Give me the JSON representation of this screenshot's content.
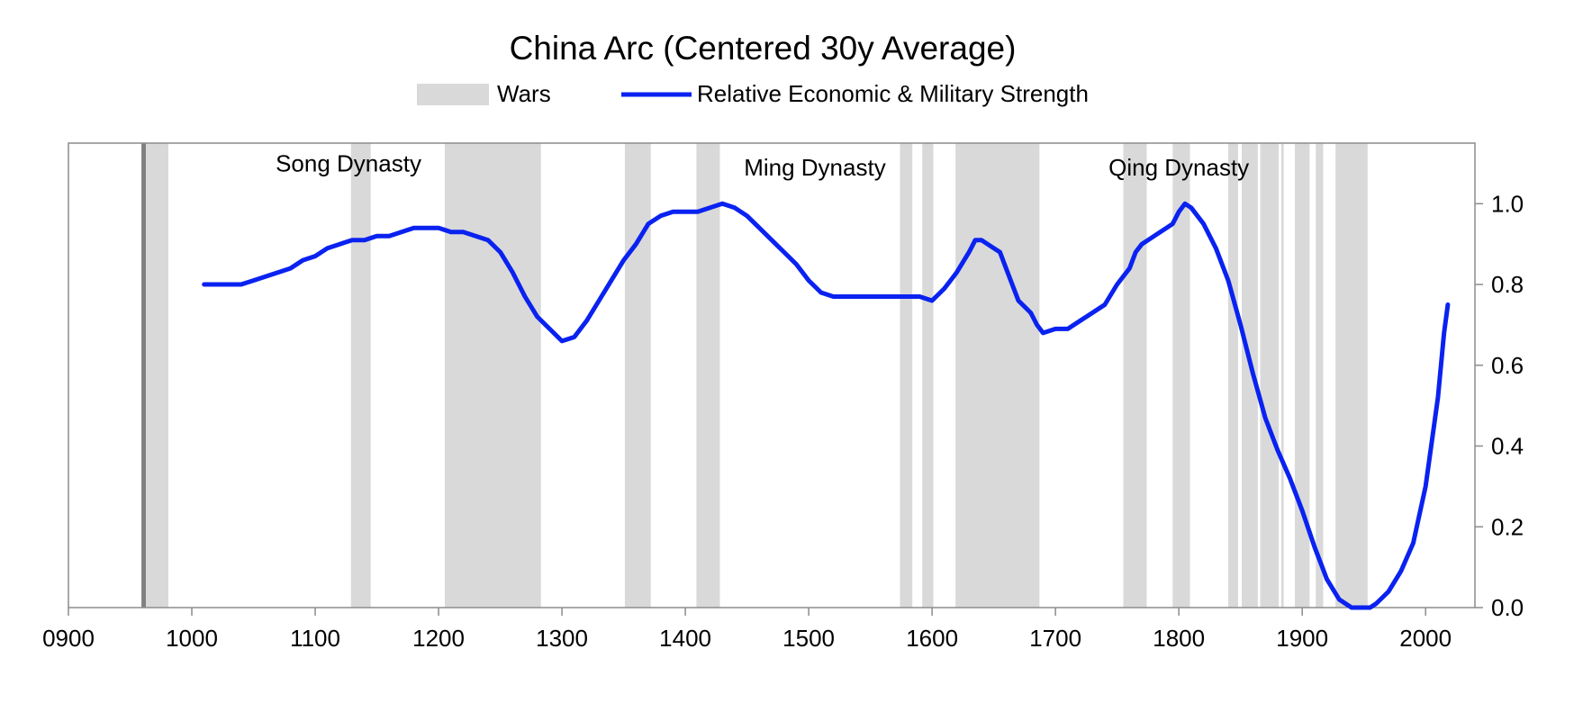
{
  "chart_data": {
    "type": "line",
    "title": "China Arc (Centered 30y Average)",
    "xlabel": "",
    "ylabel": "",
    "xlim": [
      900,
      2040
    ],
    "ylim": [
      0.0,
      1.15
    ],
    "x_ticks": [
      "0900",
      "1000",
      "1100",
      "1200",
      "1300",
      "1400",
      "1500",
      "1600",
      "1700",
      "1800",
      "1900",
      "2000"
    ],
    "y_ticks": [
      "0.0",
      "0.2",
      "0.4",
      "0.6",
      "0.8",
      "1.0"
    ],
    "y_axis_side": "right",
    "grid": false,
    "legend": {
      "placement": "top-center",
      "entries": [
        {
          "label": "Wars",
          "type": "band",
          "color": "#d9d9d9"
        },
        {
          "label": "Relative Economic & Military Strength",
          "type": "line",
          "color": "#0a22f0"
        }
      ]
    },
    "annotations": [
      {
        "text": "Song Dynasty",
        "x": 1127,
        "y": 1.08
      },
      {
        "text": "Ming Dynasty",
        "x": 1505,
        "y": 1.07
      },
      {
        "text": "Qing Dynasty",
        "x": 1800,
        "y": 1.07
      }
    ],
    "marker_line": {
      "year": 961,
      "color": "#808080"
    },
    "wars": [
      [
        963,
        981
      ],
      [
        1129,
        1145
      ],
      [
        1205,
        1283
      ],
      [
        1351,
        1372
      ],
      [
        1409,
        1428
      ],
      [
        1574,
        1584
      ],
      [
        1592,
        1601
      ],
      [
        1619,
        1687
      ],
      [
        1755,
        1774
      ],
      [
        1795,
        1809
      ],
      [
        1840,
        1848
      ],
      [
        1851,
        1864
      ],
      [
        1866,
        1881
      ],
      [
        1883,
        1885
      ],
      [
        1894,
        1906
      ],
      [
        1911,
        1917
      ],
      [
        1927,
        1953
      ]
    ],
    "series": [
      {
        "name": "Relative Economic & Military Strength",
        "color": "#0a22f0",
        "x": [
          1010,
          1020,
          1030,
          1040,
          1050,
          1060,
          1070,
          1080,
          1090,
          1100,
          1110,
          1120,
          1130,
          1140,
          1150,
          1160,
          1170,
          1180,
          1190,
          1200,
          1210,
          1220,
          1230,
          1240,
          1250,
          1260,
          1270,
          1280,
          1290,
          1300,
          1310,
          1320,
          1330,
          1340,
          1350,
          1360,
          1370,
          1380,
          1390,
          1400,
          1410,
          1420,
          1430,
          1440,
          1450,
          1460,
          1470,
          1480,
          1490,
          1500,
          1510,
          1520,
          1530,
          1540,
          1550,
          1560,
          1570,
          1580,
          1590,
          1600,
          1610,
          1620,
          1630,
          1635,
          1640,
          1650,
          1655,
          1660,
          1670,
          1680,
          1685,
          1690,
          1700,
          1710,
          1720,
          1730,
          1740,
          1750,
          1760,
          1765,
          1770,
          1780,
          1790,
          1795,
          1800,
          1805,
          1810,
          1820,
          1830,
          1840,
          1850,
          1860,
          1870,
          1880,
          1890,
          1900,
          1910,
          1920,
          1930,
          1940,
          1945,
          1950,
          1955,
          1960,
          1970,
          1980,
          1990,
          2000,
          2010,
          2015,
          2018
        ],
        "values": [
          0.8,
          0.8,
          0.8,
          0.8,
          0.81,
          0.82,
          0.83,
          0.84,
          0.86,
          0.87,
          0.89,
          0.9,
          0.91,
          0.91,
          0.92,
          0.92,
          0.93,
          0.94,
          0.94,
          0.94,
          0.93,
          0.93,
          0.92,
          0.91,
          0.88,
          0.83,
          0.77,
          0.72,
          0.69,
          0.66,
          0.67,
          0.71,
          0.76,
          0.81,
          0.86,
          0.9,
          0.95,
          0.97,
          0.98,
          0.98,
          0.98,
          0.99,
          1.0,
          0.99,
          0.97,
          0.94,
          0.91,
          0.88,
          0.85,
          0.81,
          0.78,
          0.77,
          0.77,
          0.77,
          0.77,
          0.77,
          0.77,
          0.77,
          0.77,
          0.76,
          0.79,
          0.83,
          0.88,
          0.91,
          0.91,
          0.89,
          0.88,
          0.84,
          0.76,
          0.73,
          0.7,
          0.68,
          0.69,
          0.69,
          0.71,
          0.73,
          0.75,
          0.8,
          0.84,
          0.88,
          0.9,
          0.92,
          0.94,
          0.95,
          0.98,
          1.0,
          0.99,
          0.95,
          0.89,
          0.81,
          0.7,
          0.58,
          0.47,
          0.39,
          0.32,
          0.24,
          0.15,
          0.07,
          0.02,
          0.0,
          0.0,
          0.0,
          0.0,
          0.01,
          0.04,
          0.09,
          0.16,
          0.3,
          0.52,
          0.68,
          0.75
        ]
      }
    ]
  }
}
